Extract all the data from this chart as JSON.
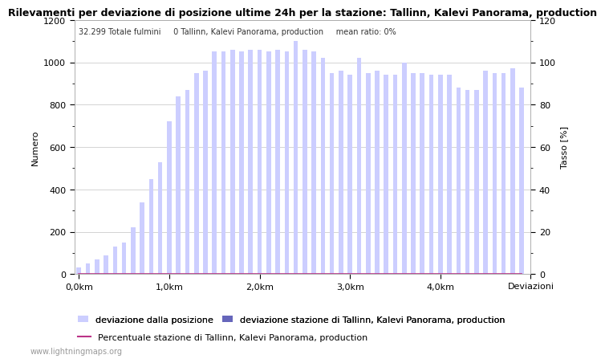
{
  "title": "Rilevamenti per deviazione di posizione ultime 24h per la stazione: Tallinn, Kalevi Panorama, production",
  "subtitle": "32.299 Totale fulmini     0 Tallinn, Kalevi Panorama, production     mean ratio: 0%",
  "ylabel_left": "Numero",
  "ylabel_right": "Tasso [%]",
  "ylim_left": [
    0,
    1200
  ],
  "ylim_right": [
    0,
    120
  ],
  "x_tick_positions": [
    0,
    10,
    20,
    30,
    40,
    50
  ],
  "x_tick_labels": [
    "0,0km",
    "1,0km",
    "2,0km",
    "3,0km",
    "4,0km",
    "Deviazioni"
  ],
  "y_major_left": [
    0,
    200,
    400,
    600,
    800,
    1000,
    1200
  ],
  "y_minor_left": [
    100,
    300,
    500,
    700,
    900,
    1100
  ],
  "y_major_right": [
    0,
    20,
    40,
    60,
    80,
    100,
    120
  ],
  "y_minor_right": [
    10,
    30,
    50,
    70,
    90,
    110
  ],
  "bar_color_light": "#ccceff",
  "bar_color_dark": "#6666bb",
  "line_color": "#bb3388",
  "bar_width": 0.5,
  "watermark": "www.lightningmaps.org",
  "legend_label_0": "deviazione dalla posizione",
  "legend_label_1": "deviazione stazione di Tallinn, Kalevi Panorama, production",
  "legend_label_2": "Percentuale stazione di Tallinn, Kalevi Panorama, production",
  "bars_total": [
    30,
    50,
    70,
    90,
    130,
    150,
    220,
    340,
    450,
    530,
    720,
    840,
    870,
    950,
    960,
    1050,
    1050,
    1060,
    1050,
    1060,
    1060,
    1050,
    1060,
    1050,
    1100,
    1060,
    1050,
    1020,
    950,
    960,
    940,
    1020,
    950,
    960,
    940,
    940,
    1000,
    950,
    950,
    940,
    940,
    940,
    880,
    870,
    870,
    960,
    950,
    950,
    970,
    880
  ],
  "bars_station": [
    0,
    0,
    0,
    0,
    0,
    0,
    0,
    0,
    0,
    0,
    0,
    0,
    0,
    0,
    0,
    0,
    0,
    0,
    0,
    0,
    0,
    0,
    0,
    0,
    0,
    0,
    0,
    0,
    0,
    0,
    0,
    0,
    0,
    0,
    0,
    0,
    0,
    0,
    0,
    0,
    0,
    0,
    0,
    0,
    0,
    0,
    0,
    0,
    0,
    0
  ],
  "line_values": [
    0,
    0,
    0,
    0,
    0,
    0,
    0,
    0,
    0,
    0,
    0,
    0,
    0,
    0,
    0,
    0,
    0,
    0,
    0,
    0,
    0,
    0,
    0,
    0,
    0,
    0,
    0,
    0,
    0,
    0,
    0,
    0,
    0,
    0,
    0,
    0,
    0,
    0,
    0,
    0,
    0,
    0,
    0,
    0,
    0,
    0,
    0,
    0,
    0,
    0
  ],
  "grid_color": "#cccccc",
  "bg_color": "#ffffff",
  "title_fontsize": 9,
  "axis_fontsize": 8,
  "label_fontsize": 8,
  "legend_fontsize": 8
}
